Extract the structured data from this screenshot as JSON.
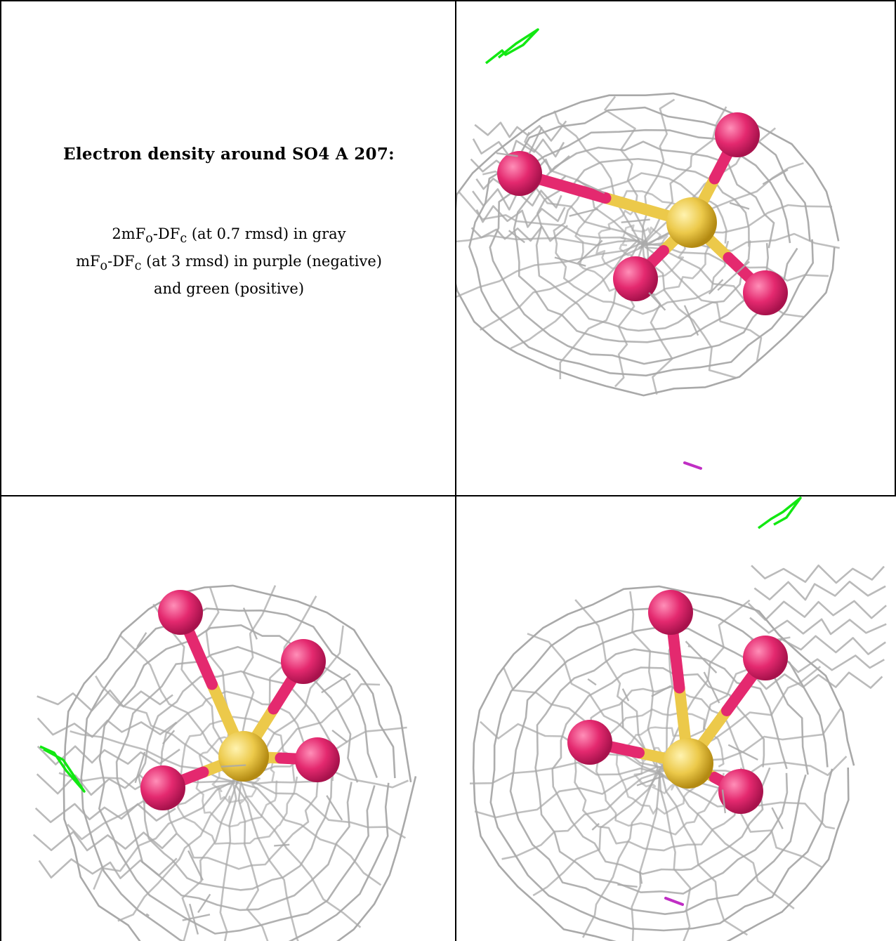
{
  "caption": {
    "title": "Electron density around SO4 A 207:",
    "line1": {
      "a": "2mF",
      "a_sub": "o",
      "b": "-DF",
      "b_sub": "c",
      "c": " (at 0.7 rmsd) in gray"
    },
    "line2": {
      "a": "mF",
      "a_sub": "o",
      "b": "-DF",
      "b_sub": "c",
      "c": " (at 3 rmsd) in purple (negative)"
    },
    "line3": "and green (positive)"
  },
  "colors": {
    "mesh": "#a9a9a9",
    "sulfur": "#ecc94a",
    "oxygen": "#e4296f",
    "positive": "#12e812",
    "negative": "#c02ec4",
    "border": "#000000"
  },
  "panels": [
    {
      "id": "view-1",
      "mesh_ellipse": [
        265,
        345,
        275,
        230
      ],
      "lobe": "left",
      "sulfur": [
        335,
        315
      ],
      "oxygens": [
        [
          90,
          245
        ],
        [
          400,
          190
        ],
        [
          255,
          395
        ],
        [
          440,
          415
        ]
      ],
      "green": true,
      "purple": true
    },
    {
      "id": "view-2",
      "mesh_ellipse": [
        335,
        405,
        250,
        300
      ],
      "lobe": "bottom-left",
      "sulfur": [
        345,
        370
      ],
      "oxygens": [
        [
          255,
          165
        ],
        [
          430,
          235
        ],
        [
          450,
          375
        ],
        [
          230,
          415
        ]
      ],
      "green": true,
      "purple": false
    },
    {
      "id": "view-3",
      "mesh_ellipse": [
        290,
        390,
        270,
        280
      ],
      "lobe": "right",
      "sulfur": [
        330,
        380
      ],
      "oxygens": [
        [
          305,
          165
        ],
        [
          440,
          230
        ],
        [
          190,
          350
        ],
        [
          405,
          420
        ]
      ],
      "green": true,
      "purple": true
    }
  ]
}
